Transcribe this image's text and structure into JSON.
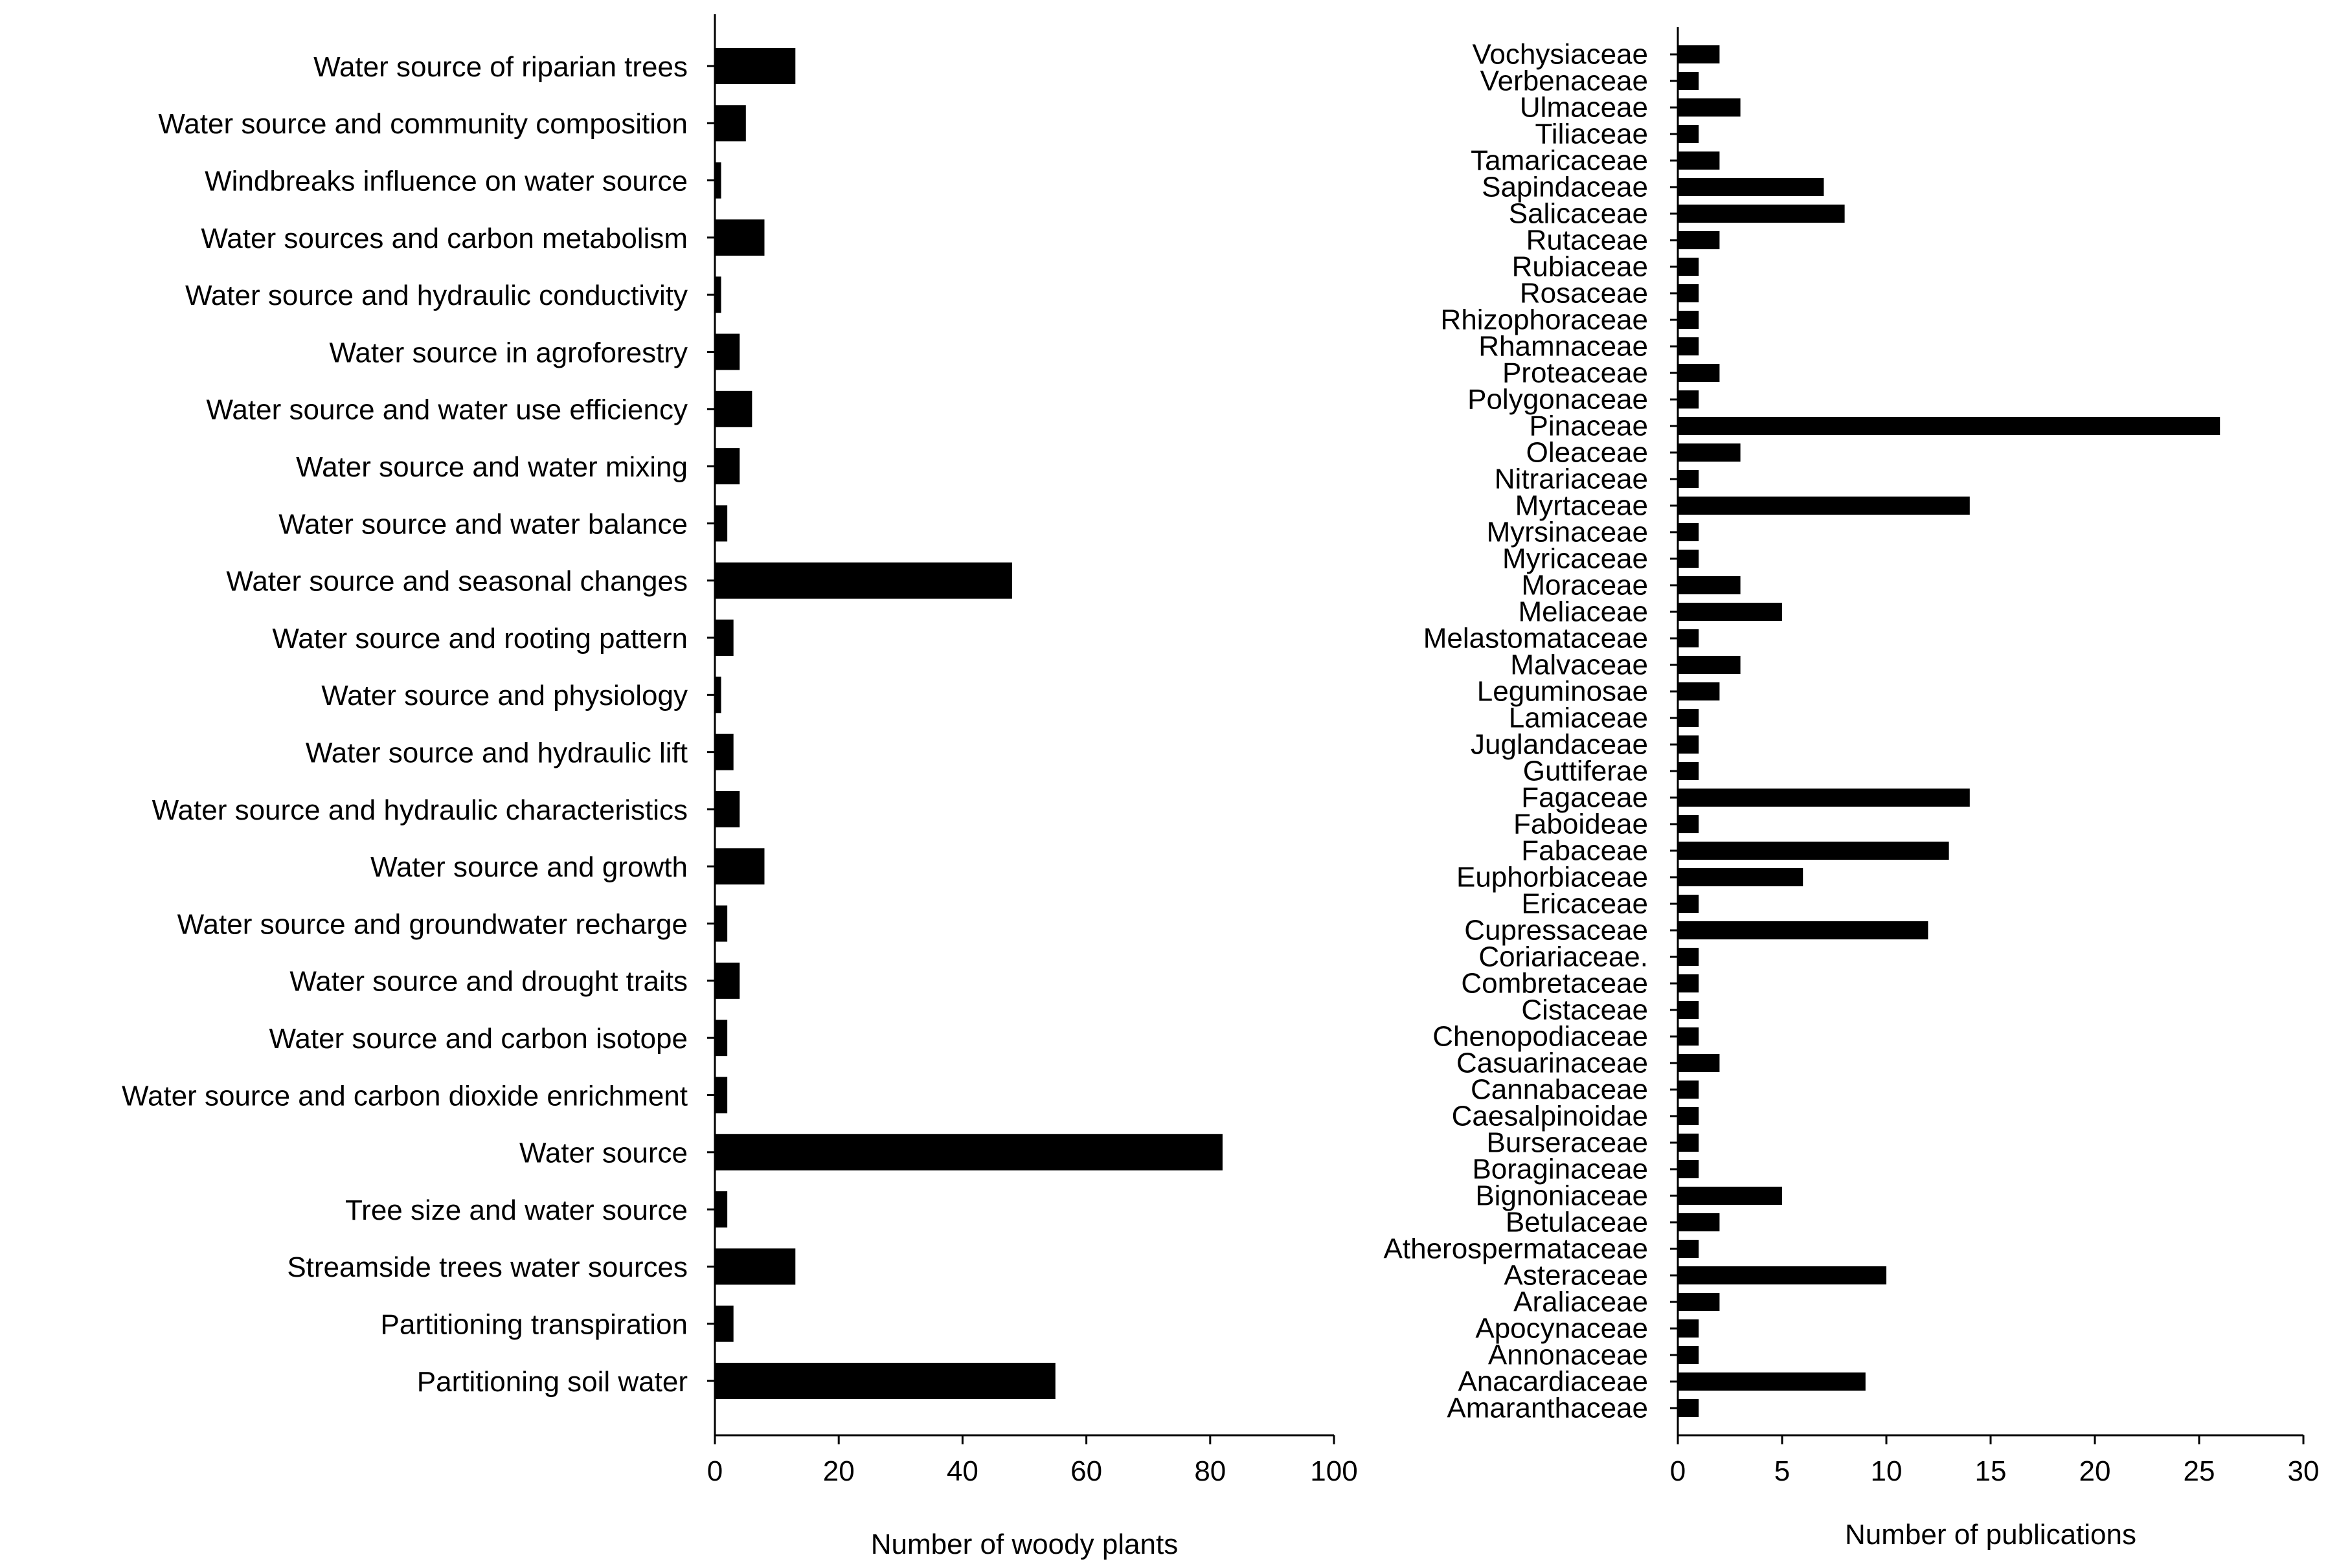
{
  "chart_data": [
    {
      "type": "bar",
      "orientation": "horizontal",
      "categories": [
        "Water source of riparian trees",
        "Water source and community composition",
        "Windbreaks influence on water source",
        "Water sources and carbon metabolism",
        "Water source and hydraulic  conductivity",
        "Water source in agroforestry",
        "Water source and water use efficiency",
        "Water source and water mixing",
        "Water source and water balance",
        "Water source and seasonal changes",
        "Water source and rooting pattern",
        "Water source and physiology",
        "Water source and hydraulic lift",
        "Water source and hydraulic characteristics",
        "Water source and growth",
        "Water source and groundwater recharge",
        "Water source and drought traits",
        "Water source and carbon isotope",
        "Water source and carbon dioxide enrichment",
        "Water source",
        "Tree size and water source",
        "Streamside trees water sources",
        "Partitioning transpiration",
        "Partitioning soil water"
      ],
      "values": [
        13,
        5,
        1,
        8,
        1,
        4,
        6,
        4,
        2,
        48,
        3,
        1,
        3,
        4,
        8,
        2,
        4,
        2,
        2,
        82,
        2,
        13,
        3,
        55
      ],
      "title": "",
      "xlabel": "Number of woody plants",
      "ylabel": "",
      "xlim": [
        0,
        100
      ],
      "xticks": [
        "0",
        "20",
        "40",
        "60",
        "80",
        "100"
      ],
      "color": "#000000"
    },
    {
      "type": "bar",
      "orientation": "horizontal",
      "categories": [
        "Vochysiaceae",
        "Verbenaceae",
        "Ulmaceae",
        "Tiliaceae",
        "Tamaricaceae",
        "Sapindaceae",
        "Salicaceae",
        "Rutaceae",
        "Rubiaceae",
        "Rosaceae",
        "Rhizophoraceae",
        "Rhamnaceae",
        "Proteaceae",
        "Polygonaceae",
        "Pinaceae",
        "Oleaceae",
        "Nitrariaceae",
        "Myrtaceae",
        "Myrsinaceae",
        "Myricaceae",
        "Moraceae",
        "Meliaceae",
        "Melastomataceae",
        "Malvaceae",
        "Leguminosae",
        "Lamiaceae",
        "Juglandaceae",
        "Guttiferae",
        "Fagaceae",
        "Faboideae",
        "Fabaceae",
        "Euphorbiaceae",
        "Ericaceae",
        "Cupressaceae",
        "Coriariaceae.",
        "Combretaceae",
        "Cistaceae",
        "Chenopodiaceae",
        "Casuarinaceae",
        "Cannabaceae",
        "Caesalpinoidae",
        "Burseraceae",
        "Boraginaceae",
        "Bignoniaceae",
        "Betulaceae",
        "Atherospermataceae",
        "Asteraceae",
        "Araliaceae",
        "Apocynaceae",
        "Annonaceae",
        "Anacardiaceae",
        "Amaranthaceae"
      ],
      "values": [
        2,
        1,
        3,
        1,
        2,
        7,
        8,
        2,
        1,
        1,
        1,
        1,
        2,
        1,
        26,
        3,
        1,
        14,
        1,
        1,
        3,
        5,
        1,
        3,
        2,
        1,
        1,
        1,
        14,
        1,
        13,
        6,
        1,
        12,
        1,
        1,
        1,
        1,
        2,
        1,
        1,
        1,
        1,
        5,
        2,
        1,
        10,
        2,
        1,
        1,
        9,
        1
      ],
      "title": "",
      "xlabel": "Number of publications",
      "ylabel": "",
      "xlim": [
        0,
        30
      ],
      "xticks": [
        "0",
        "5",
        "10",
        "15",
        "20",
        "25",
        "30"
      ],
      "color": "#000000"
    }
  ]
}
